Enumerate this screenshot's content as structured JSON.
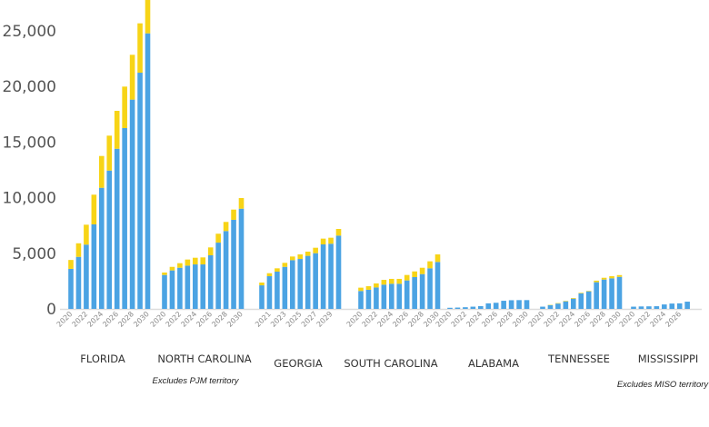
{
  "chart_data": {
    "type": "bar",
    "stacked": true,
    "ylim": [
      0,
      25000
    ],
    "yticks": [
      "0",
      "5,000",
      "10,000",
      "15,000",
      "20,000",
      "25,000"
    ],
    "ytick_values": [
      0,
      5000,
      10000,
      15000,
      20000,
      25000
    ],
    "grid": false,
    "legend": "none",
    "colors": {
      "base": "#4BA3E3",
      "top": "#F7D417"
    },
    "series": [
      {
        "role": "base"
      },
      {
        "role": "top"
      }
    ],
    "groups": [
      {
        "name": "FLORIDA",
        "note": "",
        "categories": [
          "2020",
          "2021",
          "2022",
          "2023",
          "2024",
          "2025",
          "2026",
          "2027",
          "2028",
          "2029",
          "2030"
        ],
        "tick_labels": [
          "2020",
          "2022",
          "2024",
          "2026",
          "2028",
          "2030"
        ],
        "base": [
          3600,
          4680,
          5780,
          7600,
          10890,
          12440,
          14400,
          16260,
          18820,
          21240,
          24780
        ],
        "total": [
          4400,
          5900,
          7570,
          10270,
          13750,
          15580,
          17810,
          19990,
          22850,
          25680,
          28500
        ]
      },
      {
        "name": "NORTH CAROLINA",
        "note": "Excludes PJM territory",
        "categories": [
          "2020",
          "2021",
          "2022",
          "2023",
          "2024",
          "2025",
          "2026",
          "2027",
          "2028",
          "2029",
          "2030"
        ],
        "tick_labels": [
          "2020",
          "2022",
          "2024",
          "2026",
          "2028",
          "2030"
        ],
        "base": [
          3050,
          3460,
          3700,
          3890,
          4000,
          4000,
          4820,
          5960,
          7000,
          8010,
          9010
        ],
        "total": [
          3270,
          3780,
          4110,
          4440,
          4600,
          4630,
          5530,
          6760,
          7820,
          8930,
          9970
        ]
      },
      {
        "name": "GEORGIA",
        "note": "",
        "categories": [
          "2020",
          "2021",
          "2022",
          "2023",
          "2024",
          "2025",
          "2026",
          "2027",
          "2028",
          "2029",
          "2030"
        ],
        "tick_labels": [
          "2021",
          "2023",
          "2025",
          "2027",
          "2029"
        ],
        "base": [
          2120,
          2940,
          3350,
          3780,
          4380,
          4490,
          4770,
          5010,
          5800,
          5860,
          6590
        ],
        "total": [
          2370,
          3210,
          3650,
          4140,
          4710,
          4900,
          5150,
          5500,
          6320,
          6400,
          7190
        ]
      },
      {
        "name": "SOUTH CAROLINA",
        "note": "",
        "categories": [
          "2020",
          "2021",
          "2022",
          "2023",
          "2024",
          "2025",
          "2026",
          "2027",
          "2028",
          "2029",
          "2030"
        ],
        "tick_labels": [
          "2020",
          "2022",
          "2024",
          "2026",
          "2028",
          "2030"
        ],
        "base": [
          1610,
          1720,
          1930,
          2180,
          2260,
          2260,
          2560,
          2860,
          3130,
          3650,
          4220
        ],
        "total": [
          1910,
          2040,
          2290,
          2610,
          2700,
          2700,
          3050,
          3370,
          3700,
          4280,
          4900
        ]
      },
      {
        "name": "ALABAMA",
        "note": "",
        "categories": [
          "2020",
          "2021",
          "2022",
          "2023",
          "2024",
          "2025",
          "2026",
          "2027",
          "2028",
          "2029",
          "2030"
        ],
        "tick_labels": [
          "2020",
          "2022",
          "2024",
          "2026",
          "2028",
          "2030"
        ],
        "base": [
          100,
          120,
          150,
          200,
          250,
          500,
          550,
          730,
          780,
          790,
          790
        ],
        "total": [
          100,
          120,
          150,
          200,
          250,
          500,
          550,
          730,
          780,
          790,
          790
        ]
      },
      {
        "name": "TENNESSEE",
        "note": "",
        "categories": [
          "2020",
          "2021",
          "2022",
          "2023",
          "2024",
          "2025",
          "2026",
          "2027",
          "2028",
          "2029",
          "2030"
        ],
        "tick_labels": [
          "2020",
          "2022",
          "2024",
          "2026",
          "2028",
          "2030"
        ],
        "base": [
          200,
          330,
          480,
          680,
          920,
          1400,
          1580,
          2400,
          2640,
          2750,
          2880
        ],
        "total": [
          200,
          360,
          520,
          720,
          980,
          1450,
          1620,
          2540,
          2800,
          2940,
          3040
        ]
      },
      {
        "name": "MISSISSIPPI",
        "note": "Excludes MISO territory",
        "categories": [
          "2020",
          "2021",
          "2022",
          "2023",
          "2024",
          "2025",
          "2026",
          "2027"
        ],
        "tick_labels": [
          "2020",
          "2022",
          "2024",
          "2026"
        ],
        "base": [
          200,
          220,
          230,
          240,
          400,
          480,
          500,
          650
        ],
        "total": [
          200,
          220,
          230,
          240,
          400,
          480,
          500,
          650
        ]
      }
    ]
  }
}
